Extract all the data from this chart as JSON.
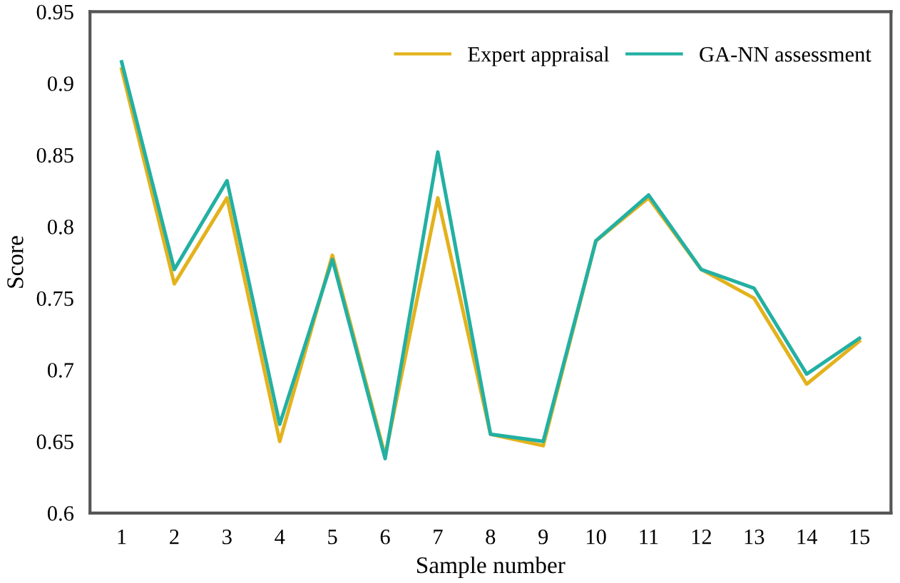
{
  "chart_data": {
    "type": "line",
    "xlabel": "Sample number",
    "ylabel": "Score",
    "x": [
      1,
      2,
      3,
      4,
      5,
      6,
      7,
      8,
      9,
      10,
      11,
      12,
      13,
      14,
      15
    ],
    "series": [
      {
        "name": "Expert appraisal",
        "color": "#e3b21c",
        "values": [
          0.91,
          0.76,
          0.82,
          0.65,
          0.78,
          0.64,
          0.82,
          0.655,
          0.647,
          0.79,
          0.82,
          0.77,
          0.75,
          0.69,
          0.72
        ]
      },
      {
        "name": "GA-NN assessment",
        "color": "#23b0a3",
        "values": [
          0.915,
          0.77,
          0.832,
          0.662,
          0.777,
          0.638,
          0.852,
          0.655,
          0.65,
          0.79,
          0.822,
          0.77,
          0.757,
          0.697,
          0.722
        ]
      }
    ],
    "xlim": [
      0.4,
      15.6
    ],
    "xticks": [
      1,
      2,
      3,
      4,
      5,
      6,
      7,
      8,
      9,
      10,
      11,
      12,
      13,
      14,
      15
    ],
    "ylim": [
      0.6,
      0.95
    ],
    "yticks": [
      0.6,
      0.65,
      0.7,
      0.75,
      0.8,
      0.85,
      0.9,
      0.95
    ],
    "grid": false,
    "legend": "top right",
    "marker": "none",
    "line_style": "solid"
  }
}
